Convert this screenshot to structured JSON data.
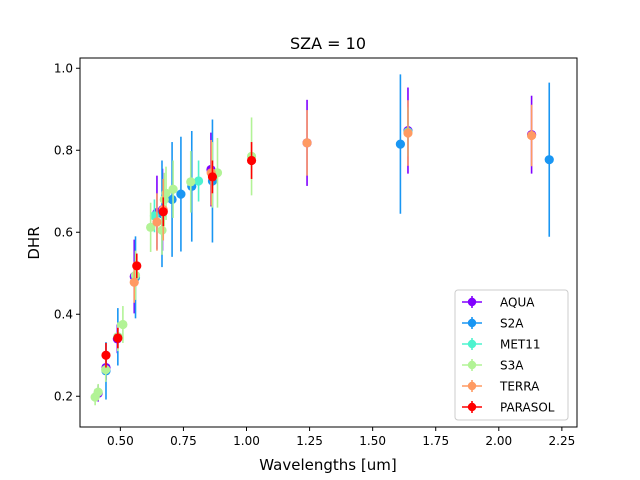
{
  "chart_data": {
    "type": "scatter",
    "title": "SZA = 10",
    "xlabel": "Wavelengths [um]",
    "ylabel": "DHR",
    "xlim": [
      0.34,
      2.31
    ],
    "ylim": [
      0.125,
      1.025
    ],
    "xticks": [
      "0.50",
      "0.75",
      "1.00",
      "1.25",
      "1.50",
      "1.75",
      "2.00",
      "2.25"
    ],
    "xtick_values": [
      0.5,
      0.75,
      1.0,
      1.25,
      1.5,
      1.75,
      2.0,
      2.25
    ],
    "yticks": [
      "0.2",
      "0.4",
      "0.6",
      "0.8",
      "1.0"
    ],
    "ytick_values": [
      0.2,
      0.4,
      0.6,
      0.8,
      1.0
    ],
    "grid": false,
    "legend_position": "lower-right",
    "series": [
      {
        "name": "AQUA",
        "color": "#8000ff",
        "points": [
          {
            "x": 0.412,
            "y": 0.207,
            "err": 0.02
          },
          {
            "x": 0.443,
            "y": 0.27,
            "err": 0.03
          },
          {
            "x": 0.488,
            "y": 0.34,
            "err": 0.035
          },
          {
            "x": 0.555,
            "y": 0.492,
            "err": 0.09
          },
          {
            "x": 0.645,
            "y": 0.648,
            "err": 0.09
          },
          {
            "x": 0.667,
            "y": 0.655,
            "err": 0.1
          },
          {
            "x": 0.859,
            "y": 0.753,
            "err": 0.09
          },
          {
            "x": 1.24,
            "y": 0.818,
            "err": 0.105
          },
          {
            "x": 1.64,
            "y": 0.848,
            "err": 0.105
          },
          {
            "x": 2.13,
            "y": 0.838,
            "err": 0.095
          }
        ]
      },
      {
        "name": "S2A",
        "color": "#1996f3",
        "points": [
          {
            "x": 0.443,
            "y": 0.262,
            "err": 0.07
          },
          {
            "x": 0.49,
            "y": 0.345,
            "err": 0.07
          },
          {
            "x": 0.56,
            "y": 0.49,
            "err": 0.1
          },
          {
            "x": 0.665,
            "y": 0.645,
            "err": 0.13
          },
          {
            "x": 0.705,
            "y": 0.68,
            "err": 0.14
          },
          {
            "x": 0.74,
            "y": 0.693,
            "err": 0.14
          },
          {
            "x": 0.783,
            "y": 0.712,
            "err": 0.135
          },
          {
            "x": 0.865,
            "y": 0.725,
            "err": 0.15
          },
          {
            "x": 1.61,
            "y": 0.815,
            "err": 0.17
          },
          {
            "x": 2.2,
            "y": 0.777,
            "err": 0.188
          }
        ]
      },
      {
        "name": "MET11",
        "color": "#4df3ce",
        "points": [
          {
            "x": 0.635,
            "y": 0.64,
            "err": 0.04
          },
          {
            "x": 0.81,
            "y": 0.725,
            "err": 0.05
          },
          {
            "x": 1.64,
            "y": 0.845,
            "err": 0.06
          }
        ]
      },
      {
        "name": "S3A",
        "color": "#b2f396",
        "points": [
          {
            "x": 0.4,
            "y": 0.198,
            "err": 0.02
          },
          {
            "x": 0.412,
            "y": 0.21,
            "err": 0.02
          },
          {
            "x": 0.442,
            "y": 0.265,
            "err": 0.03
          },
          {
            "x": 0.49,
            "y": 0.345,
            "err": 0.035
          },
          {
            "x": 0.51,
            "y": 0.375,
            "err": 0.045
          },
          {
            "x": 0.56,
            "y": 0.495,
            "err": 0.06
          },
          {
            "x": 0.62,
            "y": 0.612,
            "err": 0.06
          },
          {
            "x": 0.665,
            "y": 0.605,
            "err": 0.06
          },
          {
            "x": 0.674,
            "y": 0.68,
            "err": 0.065
          },
          {
            "x": 0.681,
            "y": 0.695,
            "err": 0.065
          },
          {
            "x": 0.709,
            "y": 0.705,
            "err": 0.07
          },
          {
            "x": 0.779,
            "y": 0.723,
            "err": 0.075
          },
          {
            "x": 0.865,
            "y": 0.74,
            "err": 0.08
          },
          {
            "x": 0.885,
            "y": 0.745,
            "err": 0.085
          },
          {
            "x": 1.02,
            "y": 0.785,
            "err": 0.095
          }
        ]
      },
      {
        "name": "TERRA",
        "color": "#ff9a62",
        "points": [
          {
            "x": 0.555,
            "y": 0.478,
            "err": 0.05
          },
          {
            "x": 0.645,
            "y": 0.625,
            "err": 0.07
          },
          {
            "x": 0.67,
            "y": 0.655,
            "err": 0.075
          },
          {
            "x": 0.86,
            "y": 0.745,
            "err": 0.08
          },
          {
            "x": 1.24,
            "y": 0.818,
            "err": 0.08
          },
          {
            "x": 1.64,
            "y": 0.842,
            "err": 0.08
          },
          {
            "x": 2.13,
            "y": 0.836,
            "err": 0.075
          }
        ]
      },
      {
        "name": "PARASOL",
        "color": "#ff0000",
        "points": [
          {
            "x": 0.443,
            "y": 0.3,
            "err": 0.03
          },
          {
            "x": 0.49,
            "y": 0.342,
            "err": 0.025
          },
          {
            "x": 0.565,
            "y": 0.518,
            "err": 0.03
          },
          {
            "x": 0.67,
            "y": 0.65,
            "err": 0.035
          },
          {
            "x": 0.865,
            "y": 0.735,
            "err": 0.04
          },
          {
            "x": 1.02,
            "y": 0.775,
            "err": 0.045
          }
        ]
      }
    ]
  }
}
